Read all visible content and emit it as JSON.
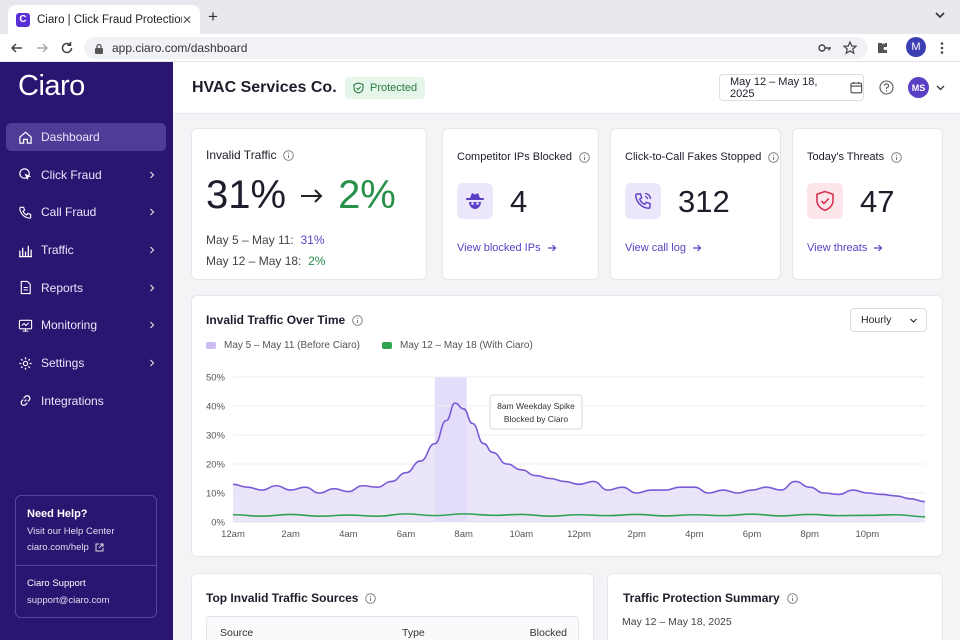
{
  "browser": {
    "tab_title": "Ciaro | Click Fraud Protection",
    "favicon_letter": "C",
    "url": "app.ciaro.com/dashboard",
    "profile_initial": "M"
  },
  "sidebar": {
    "logo": "Ciaro",
    "items": [
      {
        "label": "Dashboard",
        "icon": "home-icon",
        "active": true
      },
      {
        "label": "Click Fraud",
        "icon": "click-icon"
      },
      {
        "label": "Call Fraud",
        "icon": "phone-icon"
      },
      {
        "label": "Traffic",
        "icon": "traffic-icon"
      },
      {
        "label": "Reports",
        "icon": "report-icon"
      },
      {
        "label": "Monitoring",
        "icon": "monitor-icon"
      },
      {
        "label": "Settings",
        "icon": "gear-icon"
      },
      {
        "label": "Integrations",
        "icon": "link-icon"
      }
    ],
    "help": {
      "title": "Need Help?",
      "text": "Visit our Help Center",
      "link": "ciaro.com/help",
      "support_title": "Ciaro Support",
      "support_email": "support@ciaro.com"
    }
  },
  "header": {
    "org_name": "HVAC Services Co.",
    "status": "Protected",
    "date_range": "May 12 – May 18, 2025",
    "user_initials": "MS"
  },
  "cards": {
    "invalid": {
      "title": "Invalid Traffic",
      "before": "31%",
      "after": "2%",
      "row1_label": "May 5 – May 11:",
      "row1_value": "31%",
      "row2_label": "May 12 – May 18:",
      "row2_value": "2%"
    },
    "competitor": {
      "title": "Competitor IPs Blocked",
      "value": "4",
      "link": "View blocked IPs"
    },
    "calls": {
      "title": "Click-to-Call Fakes Stopped",
      "value": "312",
      "link": "View call log"
    },
    "threats": {
      "title": "Today's Threats",
      "value": "47",
      "link": "View threats"
    }
  },
  "chart": {
    "title": "Invalid Traffic Over Time",
    "granularity": "Hourly",
    "annotation_line1": "8am Weekday Spike",
    "annotation_line2": "Blocked by Ciaro",
    "colors": {
      "before": "#7a5bd6",
      "before_fill": "#e4dcf8",
      "after": "#2fa352",
      "highlight": "#d9cff6"
    }
  },
  "chart_data": {
    "type": "area",
    "x_ticks": [
      "12am",
      "2am",
      "4am",
      "6am",
      "8am",
      "10am",
      "12pm",
      "2pm",
      "4pm",
      "6pm",
      "8pm",
      "10pm"
    ],
    "y_ticks": [
      "0%",
      "10%",
      "20%",
      "30%",
      "40%",
      "50%"
    ],
    "ylim": [
      0,
      50
    ],
    "xlim": [
      0,
      24
    ],
    "series": [
      {
        "name": "May  5 – May 11 (Before Ciaro)",
        "points": [
          [
            0,
            13
          ],
          [
            0.5,
            12
          ],
          [
            1,
            11
          ],
          [
            1.5,
            12.5
          ],
          [
            2,
            11
          ],
          [
            2.5,
            12
          ],
          [
            3,
            10
          ],
          [
            3.5,
            11.5
          ],
          [
            4,
            10.5
          ],
          [
            4.5,
            12.5
          ],
          [
            5,
            12
          ],
          [
            5.5,
            14
          ],
          [
            6,
            17
          ],
          [
            6.5,
            21
          ],
          [
            7,
            27
          ],
          [
            7.4,
            35
          ],
          [
            7.7,
            41
          ],
          [
            8,
            39
          ],
          [
            8.3,
            34
          ],
          [
            8.7,
            27
          ],
          [
            9,
            24
          ],
          [
            9.5,
            20
          ],
          [
            10,
            18
          ],
          [
            10.5,
            16
          ],
          [
            11,
            15
          ],
          [
            11.5,
            14
          ],
          [
            12,
            13
          ],
          [
            12.5,
            14
          ],
          [
            13,
            11
          ],
          [
            13.5,
            12
          ],
          [
            14,
            10
          ],
          [
            14.5,
            11
          ],
          [
            15,
            11
          ],
          [
            15.5,
            12
          ],
          [
            16,
            12
          ],
          [
            16.5,
            10
          ],
          [
            17,
            11
          ],
          [
            17.5,
            10
          ],
          [
            18,
            11
          ],
          [
            18.5,
            12
          ],
          [
            19,
            11
          ],
          [
            19.5,
            14
          ],
          [
            20,
            12
          ],
          [
            20.5,
            10
          ],
          [
            21,
            9.5
          ],
          [
            21.5,
            11
          ],
          [
            22,
            10
          ],
          [
            22.5,
            9.5
          ],
          [
            23,
            9
          ],
          [
            23.5,
            8
          ],
          [
            24,
            7
          ]
        ]
      },
      {
        "name": "May 12 – May 18 (With Ciaro)",
        "points": [
          [
            0,
            2.5
          ],
          [
            1,
            2
          ],
          [
            2,
            2.6
          ],
          [
            3,
            2
          ],
          [
            4,
            2.4
          ],
          [
            5,
            2
          ],
          [
            6,
            2.8
          ],
          [
            7,
            2.2
          ],
          [
            8,
            2.8
          ],
          [
            9,
            2.3
          ],
          [
            10,
            2.6
          ],
          [
            11,
            2
          ],
          [
            12,
            2.5
          ],
          [
            13,
            2.2
          ],
          [
            14,
            2.6
          ],
          [
            15,
            2.1
          ],
          [
            16,
            2.5
          ],
          [
            17,
            2.2
          ],
          [
            18,
            2.7
          ],
          [
            19,
            2.1
          ],
          [
            20,
            2.6
          ],
          [
            21,
            2.2
          ],
          [
            22,
            2.3
          ],
          [
            23,
            2.5
          ],
          [
            24,
            1.8
          ]
        ]
      }
    ],
    "highlight_x_range": [
      7,
      8.1
    ]
  },
  "bottom": {
    "sources_title": "Top Invalid Traffic Sources",
    "col_source": "Source",
    "col_type": "Type",
    "col_blocked": "Blocked",
    "summary_title": "Traffic Protection Summary",
    "summary_range": "May 12 – May 18, 2025"
  }
}
